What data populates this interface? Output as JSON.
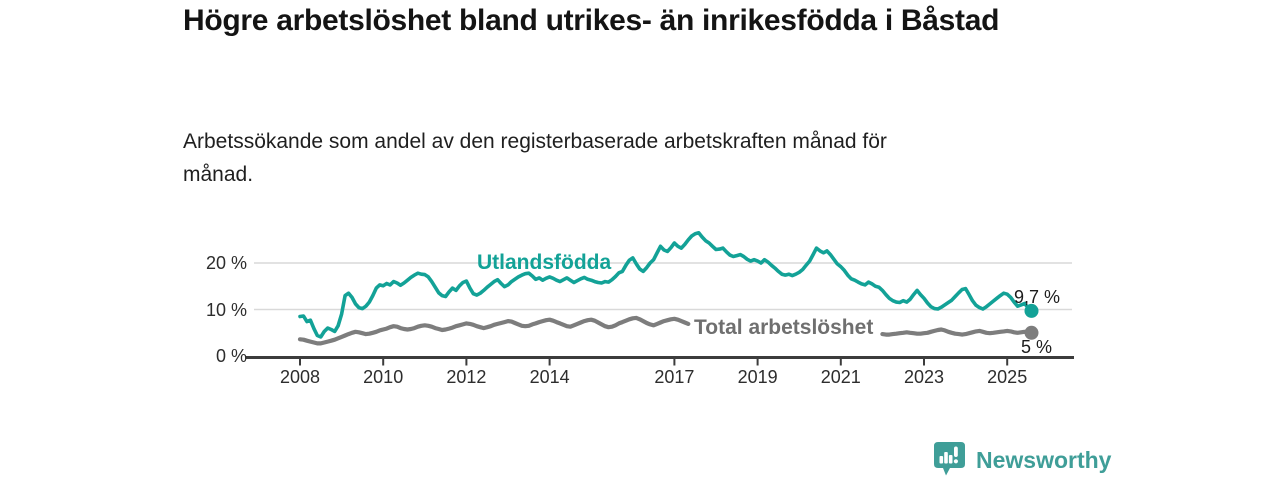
{
  "chart_data": {
    "type": "line",
    "title": "Högre arbetslöshet bland utrikes- än inrikesfödda i Båstad",
    "subtitle": "Arbetssökande som andel av den registerbaserade arbetskraften månad för månad.",
    "x_unit": "month",
    "x_range": [
      "2008-01",
      "2025-08"
    ],
    "x_tick_years": [
      "2008",
      "2010",
      "2012",
      "2014",
      "2017",
      "2019",
      "2021",
      "2023",
      "2025"
    ],
    "y_ticks": [
      {
        "value": 0,
        "label": "0 %"
      },
      {
        "value": 10,
        "label": "10 %"
      },
      {
        "value": 20,
        "label": "20 %"
      }
    ],
    "ylim": [
      0,
      27
    ],
    "grid": true,
    "legend_position": "inline-labels-on-lines",
    "axis_color": "#3c3c3c",
    "gridline_color": "#d9d9d9",
    "series": [
      {
        "name": "Utlandsfödda",
        "color": "#13a297",
        "end_label": "9,7 %",
        "end_value": 9.7,
        "values": [
          8.5,
          8.6,
          7.4,
          7.7,
          5.9,
          4.4,
          4.1,
          5.3,
          6.0,
          5.7,
          5.3,
          6.5,
          9.0,
          13.0,
          13.5,
          12.6,
          11.2,
          10.4,
          10.2,
          10.7,
          11.6,
          13.0,
          14.6,
          15.3,
          15.1,
          15.6,
          15.3,
          16.0,
          15.7,
          15.2,
          15.7,
          16.3,
          16.9,
          17.4,
          17.8,
          17.6,
          17.5,
          17.0,
          16.0,
          14.8,
          13.6,
          13.0,
          12.8,
          13.8,
          14.6,
          14.1,
          15.1,
          15.8,
          16.1,
          14.6,
          13.4,
          13.1,
          13.5,
          14.1,
          14.8,
          15.4,
          16.0,
          16.4,
          15.6,
          14.9,
          15.3,
          16.0,
          16.5,
          17.0,
          17.4,
          17.7,
          17.8,
          17.2,
          16.5,
          16.8,
          16.3,
          16.7,
          17.0,
          16.7,
          16.3,
          16.0,
          16.4,
          16.8,
          16.3,
          15.8,
          16.2,
          16.6,
          16.9,
          16.5,
          16.3,
          16.0,
          15.8,
          15.7,
          16.0,
          15.9,
          16.4,
          17.1,
          17.9,
          18.2,
          19.5,
          20.6,
          21.1,
          19.8,
          18.7,
          18.2,
          19.0,
          20.0,
          20.7,
          22.2,
          23.6,
          22.8,
          22.5,
          23.3,
          24.3,
          23.6,
          23.2,
          24.0,
          25.0,
          25.8,
          26.3,
          26.5,
          25.6,
          24.8,
          24.3,
          23.6,
          22.9,
          23.0,
          23.2,
          22.4,
          21.7,
          21.4,
          21.6,
          21.8,
          21.4,
          20.8,
          20.4,
          20.7,
          20.4,
          20.0,
          20.7,
          20.2,
          19.5,
          18.9,
          18.2,
          17.6,
          17.4,
          17.6,
          17.3,
          17.6,
          18.0,
          18.6,
          19.5,
          20.4,
          21.8,
          23.2,
          22.6,
          22.2,
          22.6,
          21.8,
          20.8,
          19.8,
          19.2,
          18.4,
          17.4,
          16.6,
          16.3,
          15.9,
          15.5,
          15.3,
          15.9,
          15.5,
          15.0,
          14.8,
          14.1,
          13.2,
          12.4,
          11.9,
          11.6,
          11.5,
          11.9,
          11.6,
          12.2,
          13.2,
          14.1,
          13.2,
          12.4,
          11.4,
          10.6,
          10.2,
          10.1,
          10.5,
          11.0,
          11.5,
          12.0,
          12.8,
          13.6,
          14.3,
          14.5,
          13.2,
          11.9,
          10.9,
          10.4,
          10.1,
          10.6,
          11.2,
          11.8,
          12.4,
          13.0,
          13.5,
          13.3,
          12.6,
          11.6,
          10.7,
          11.0,
          11.3,
          10.4,
          9.7
        ]
      },
      {
        "name": "Total arbetslöshet",
        "color": "#7d7d7d",
        "label_color": "#6f6f6f",
        "end_label": "5 %",
        "end_value": 5.0,
        "label_gap_indices": [
          113,
          167
        ],
        "values": [
          3.6,
          3.5,
          3.3,
          3.1,
          2.9,
          2.7,
          2.7,
          2.9,
          3.1,
          3.3,
          3.5,
          3.8,
          4.1,
          4.4,
          4.7,
          5.0,
          5.2,
          5.1,
          4.9,
          4.7,
          4.8,
          5.0,
          5.2,
          5.5,
          5.7,
          5.9,
          6.2,
          6.4,
          6.3,
          6.0,
          5.8,
          5.7,
          5.8,
          6.0,
          6.3,
          6.5,
          6.6,
          6.5,
          6.3,
          6.0,
          5.8,
          5.6,
          5.7,
          5.9,
          6.1,
          6.4,
          6.6,
          6.8,
          7.0,
          6.9,
          6.7,
          6.4,
          6.2,
          6.0,
          6.2,
          6.4,
          6.7,
          6.9,
          7.1,
          7.3,
          7.5,
          7.4,
          7.1,
          6.8,
          6.5,
          6.4,
          6.5,
          6.8,
          7.0,
          7.3,
          7.5,
          7.7,
          7.8,
          7.6,
          7.3,
          7.0,
          6.7,
          6.4,
          6.3,
          6.6,
          6.9,
          7.2,
          7.5,
          7.7,
          7.8,
          7.6,
          7.2,
          6.8,
          6.4,
          6.2,
          6.3,
          6.6,
          7.0,
          7.3,
          7.6,
          7.9,
          8.1,
          8.2,
          7.9,
          7.5,
          7.1,
          6.8,
          6.6,
          6.9,
          7.2,
          7.5,
          7.7,
          7.9,
          8.0,
          7.8,
          7.5,
          7.2,
          6.9,
          6.6,
          6.5,
          6.7,
          6.9,
          7.1,
          7.3,
          7.4,
          7.3,
          7.1,
          6.8,
          6.5,
          6.2,
          6.0,
          5.9,
          6.1,
          6.3,
          6.5,
          6.6,
          6.7,
          6.8,
          6.6,
          6.4,
          6.2,
          6.0,
          5.9,
          6.0,
          6.2,
          6.4,
          6.6,
          6.8,
          7.0,
          7.2,
          7.4,
          7.6,
          7.7,
          7.6,
          7.4,
          7.2,
          7.0,
          6.8,
          6.6,
          6.4,
          6.2,
          6.1,
          6.0,
          5.9,
          5.7,
          5.5,
          5.3,
          5.2,
          5.1,
          5.0,
          4.9,
          4.8,
          4.7,
          4.7,
          4.6,
          4.6,
          4.7,
          4.8,
          4.9,
          5.0,
          5.1,
          5.0,
          4.9,
          4.8,
          4.8,
          4.9,
          5.0,
          5.2,
          5.4,
          5.6,
          5.7,
          5.5,
          5.2,
          5.0,
          4.8,
          4.7,
          4.6,
          4.7,
          4.9,
          5.1,
          5.3,
          5.4,
          5.2,
          5.0,
          4.9,
          5.0,
          5.1,
          5.2,
          5.3,
          5.4,
          5.3,
          5.1,
          5.0,
          5.1,
          5.2,
          5.1,
          5.0
        ]
      }
    ]
  },
  "footer": {
    "brand": "Newsworthy",
    "brand_color": "#3f9e98",
    "icon": "newsworthy-speech-bubble-bar-chart-icon"
  }
}
